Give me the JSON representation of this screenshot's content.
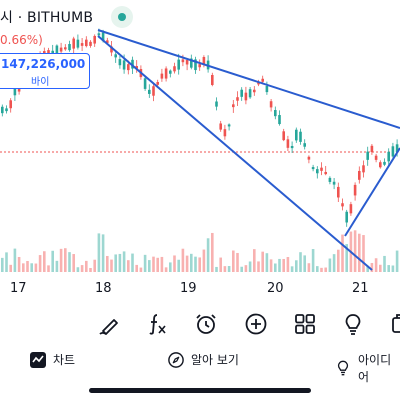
{
  "header": {
    "title": "시 · BITHUMB",
    "change": "0.66%)"
  },
  "price_label": {
    "value": "147,226,000",
    "label": "바이"
  },
  "x_axis": {
    "days": [
      "17",
      "18",
      "19",
      "20",
      "21"
    ]
  },
  "toolbar": {
    "tools": [
      {
        "icon": "brush-icon"
      },
      {
        "icon": "formula-icon"
      },
      {
        "icon": "alarm-icon"
      },
      {
        "icon": "add-circle-icon"
      },
      {
        "icon": "grid-icon"
      },
      {
        "icon": "lightbulb-icon"
      },
      {
        "icon": "more-icon"
      }
    ]
  },
  "bottom_nav": {
    "chart_label": "차트",
    "explore_label": "알아 보기",
    "ideas_label": "아이디어"
  },
  "colors": {
    "up": "#26a69a",
    "down": "#ef5350",
    "trendline": "#2a5ccf",
    "accent": "#2962ff"
  }
}
